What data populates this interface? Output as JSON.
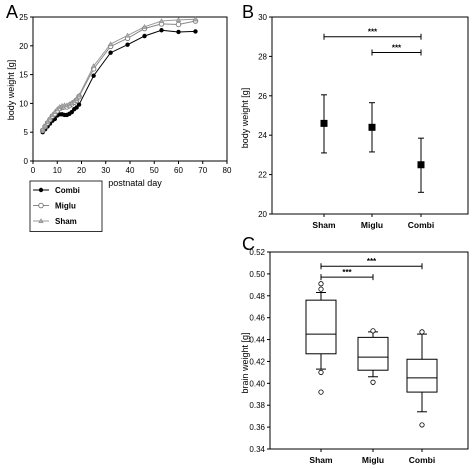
{
  "chart_data": [
    {
      "panel": "A",
      "type": "line",
      "xlabel": "postnatal day",
      "ylabel": "body weight [g]",
      "xlim": [
        0,
        80
      ],
      "ylim": [
        0,
        25
      ],
      "xticks": [
        0,
        10,
        20,
        30,
        40,
        50,
        60,
        70,
        80
      ],
      "yticks": [
        0,
        5,
        10,
        15,
        20,
        25
      ],
      "grid": false,
      "legend": "bottom-left below axis",
      "series": [
        {
          "name": "Combi",
          "marker": "filled-circle",
          "x": [
            4,
            5,
            6,
            7,
            8,
            9,
            10,
            11,
            12,
            13,
            14,
            15,
            16,
            17,
            18,
            19,
            25,
            32,
            39,
            46,
            53,
            60,
            67
          ],
          "y": [
            5.0,
            5.5,
            6.0,
            6.5,
            7.0,
            7.3,
            7.9,
            8.1,
            8.1,
            8.0,
            8.0,
            8.2,
            8.5,
            9.0,
            9.3,
            9.8,
            14.8,
            18.8,
            20.2,
            21.7,
            22.7,
            22.4,
            22.5
          ]
        },
        {
          "name": "Miglu",
          "marker": "open-circle",
          "x": [
            4,
            5,
            6,
            7,
            8,
            9,
            10,
            11,
            12,
            13,
            14,
            15,
            16,
            17,
            18,
            19,
            25,
            32,
            39,
            46,
            53,
            60,
            67
          ],
          "y": [
            5.3,
            6.0,
            6.6,
            7.2,
            7.8,
            8.2,
            8.7,
            9.1,
            9.3,
            9.4,
            9.4,
            9.6,
            9.9,
            10.2,
            10.6,
            11.2,
            16.0,
            19.9,
            21.3,
            23.0,
            23.8,
            23.7,
            24.3
          ]
        },
        {
          "name": "Sham",
          "marker": "triangle",
          "x": [
            4,
            5,
            6,
            7,
            8,
            9,
            10,
            11,
            12,
            13,
            14,
            15,
            16,
            17,
            18,
            19,
            25,
            32,
            39,
            46,
            53,
            60,
            67
          ],
          "y": [
            5.4,
            6.1,
            6.8,
            7.4,
            8.0,
            8.5,
            9.0,
            9.4,
            9.6,
            9.7,
            9.7,
            9.9,
            10.1,
            10.4,
            10.8,
            11.4,
            16.5,
            20.3,
            21.8,
            23.3,
            24.3,
            24.5,
            24.6
          ]
        }
      ]
    },
    {
      "panel": "B",
      "type": "scatter",
      "ylabel": "body weight [g]",
      "categories": [
        "Sham",
        "Miglu",
        "Combi"
      ],
      "means": [
        24.6,
        24.4,
        22.5
      ],
      "error_low": [
        23.1,
        23.15,
        21.1
      ],
      "error_high": [
        26.05,
        25.65,
        23.85
      ],
      "ylim": [
        20,
        30
      ],
      "yticks": [
        20,
        22,
        24,
        26,
        28,
        30
      ],
      "grid": false,
      "significance": [
        {
          "from": "Sham",
          "to": "Combi",
          "label": "***",
          "y": 29.0
        },
        {
          "from": "Miglu",
          "to": "Combi",
          "label": "***",
          "y": 28.2
        }
      ]
    },
    {
      "panel": "C",
      "type": "box",
      "ylabel": "brain weight [g]",
      "categories": [
        "Sham",
        "Miglu",
        "Combi"
      ],
      "boxes": [
        {
          "whisker_low": 0.413,
          "q1": 0.427,
          "median": 0.445,
          "q3": 0.476,
          "whisker_high": 0.483,
          "outliers": [
            0.491,
            0.486,
            0.41,
            0.392
          ]
        },
        {
          "whisker_low": 0.406,
          "q1": 0.412,
          "median": 0.424,
          "q3": 0.442,
          "whisker_high": 0.447,
          "outliers": [
            0.448,
            0.401
          ]
        },
        {
          "whisker_low": 0.374,
          "q1": 0.392,
          "median": 0.405,
          "q3": 0.422,
          "whisker_high": 0.445,
          "outliers": [
            0.447,
            0.362
          ]
        }
      ],
      "ylim": [
        0.34,
        0.52
      ],
      "yticks": [
        0.34,
        0.36,
        0.38,
        0.4,
        0.42,
        0.44,
        0.46,
        0.48,
        0.5,
        0.52
      ],
      "grid": false,
      "significance": [
        {
          "from": "Sham",
          "to": "Combi",
          "label": "***",
          "y": 0.507
        },
        {
          "from": "Sham",
          "to": "Miglu",
          "label": "***",
          "y": 0.497
        }
      ]
    }
  ]
}
